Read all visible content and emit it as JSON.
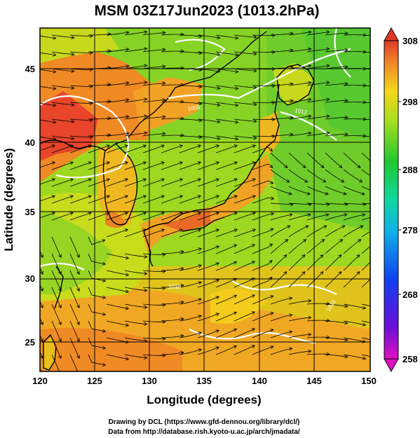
{
  "title": "MSM 03Z17Jun2023 (1013.2hPa)",
  "xlabel": "Longitude (degrees)",
  "ylabel": "Latitude  (degrees)",
  "x_ticks": [
    "120",
    "125",
    "130",
    "135",
    "140",
    "145",
    "150"
  ],
  "y_ticks": [
    "25",
    "30",
    "35",
    "40",
    "45"
  ],
  "colorbar_ticks": [
    "308",
    "298",
    "288",
    "278",
    "268",
    "258"
  ],
  "footer": {
    "line1": "Drawing by DCL (https://www.gfd-dennou.org/library/dcl/)",
    "line2": "Data from http://database.rish.kyoto-u.ac.jp/arch/jmadata/"
  },
  "map": {
    "lon_range": [
      120,
      150
    ],
    "lat_range": [
      22.4,
      47.6
    ],
    "field": "temperature (K) with wind streamlines and pressure contours",
    "colorbar_range": [
      258,
      308
    ],
    "colors": {
      "hot": "#e8452a",
      "warm": "#f08a24",
      "mild": "#f2c21c",
      "cool": "#b8dc1e",
      "cold": "#3dc82c",
      "land_outline": "#000000",
      "contour": "#ffffff"
    }
  },
  "contour_labels": [
    "1008",
    "1012",
    "1010",
    "1010"
  ]
}
